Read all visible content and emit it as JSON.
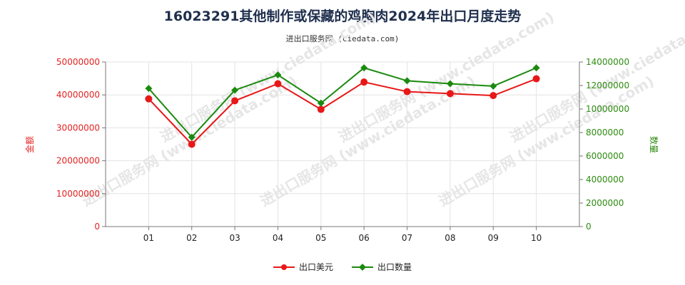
{
  "chart_data": {
    "type": "line",
    "title": "16023291其他制作或保藏的鸡胸肉2024年出口月度走势",
    "subtitle": "进出口服务网 (ciedata.com)",
    "watermark": "进出口服务网 (www.ciedata.com)",
    "categories": [
      "01",
      "02",
      "03",
      "04",
      "05",
      "06",
      "07",
      "08",
      "09",
      "10"
    ],
    "y_left": {
      "label": "金额",
      "range": [
        0,
        50000000
      ],
      "ticks": [
        "0",
        "10000000",
        "20000000",
        "30000000",
        "40000000",
        "50000000"
      ],
      "color": "#e32222"
    },
    "y_right": {
      "label": "数量",
      "range": [
        0,
        14000000
      ],
      "ticks": [
        "0",
        "2000000",
        "4000000",
        "6000000",
        "8000000",
        "10000000",
        "12000000",
        "14000000"
      ],
      "color": "#2e8b10"
    },
    "series": [
      {
        "name": "出口美元",
        "axis": "left",
        "color": "#e81818",
        "values": [
          38800000,
          25000000,
          38200000,
          43400000,
          35600000,
          43900000,
          41000000,
          40400000,
          39800000,
          44900000
        ]
      },
      {
        "name": "出口数量",
        "axis": "right",
        "color": "#1a8a0e",
        "values": [
          11750000,
          7600000,
          11600000,
          12900000,
          10500000,
          13500000,
          12400000,
          12150000,
          11950000,
          13500000
        ]
      }
    ],
    "grid": true,
    "legend_position": "bottom-center"
  }
}
